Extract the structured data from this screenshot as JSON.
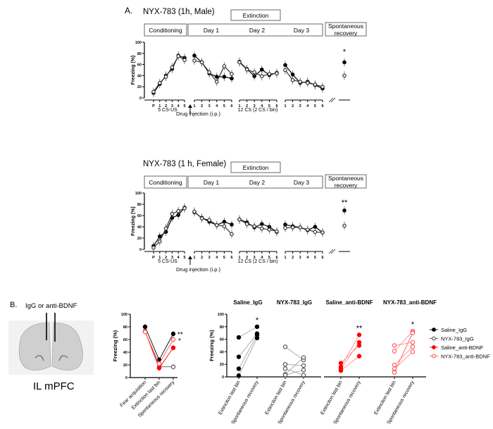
{
  "panel_a": {
    "label": "A.",
    "drug_injection": "Drug injection (i.p.)",
    "cs_us": "5 CS-US",
    "cs_bin": "12 CS (2 CS / bin)",
    "box_extinction": "Extinction",
    "box_conditioning": "Conditioning",
    "box_day1": "Day 1",
    "box_day2": "Day 2",
    "box_day3": "Day 3",
    "box_sr_1": "Spontaneous",
    "box_sr_2": "recovery"
  },
  "panel_b": {
    "label": "B.",
    "injection_label": "IgG  or anti-BDNF",
    "image_caption": "IL mPFC",
    "legend": [
      "Saline_IgG",
      "NYX-783_IgG",
      "Saline_anti-BDNF",
      "NYX-783_anti-BDNF"
    ]
  },
  "colors": {
    "black": "#000000",
    "gray": "#555555",
    "red": "#ff0000",
    "light_red": "#ff5a5a"
  },
  "chart_data": [
    {
      "type": "line",
      "title": "NYX-783 (1h, Male)",
      "ylabel": "Freezing (%)",
      "ylim": [
        0,
        100
      ],
      "yticks": [
        "0",
        "20",
        "40",
        "60",
        "80",
        "100"
      ],
      "segments": [
        {
          "ticks": [
            "P",
            "1",
            "2",
            "3",
            "4",
            "5"
          ]
        },
        {
          "ticks": [
            "1",
            "2",
            "3",
            "4",
            "5",
            "6"
          ]
        },
        {
          "ticks": [
            "1",
            "2",
            "3",
            "4",
            "5",
            "6"
          ]
        },
        {
          "ticks": [
            "1",
            "2",
            "3",
            "4",
            "5",
            "6"
          ]
        }
      ],
      "series": [
        {
          "marker": "filled",
          "segments": [
            [
              9,
              25,
              40,
              52,
              76,
              72
            ],
            [
              76,
              64,
              44,
              38,
              38,
              35
            ],
            [
              65,
              52,
              39,
              51,
              41,
              45
            ],
            [
              59,
              42,
              27,
              29,
              23,
              17
            ]
          ],
          "spontaneous_recovery": 64
        },
        {
          "marker": "open",
          "segments": [
            [
              11,
              27,
              38,
              55,
              75,
              68
            ],
            [
              67,
              64,
              46,
              29,
              57,
              43
            ],
            [
              64,
              51,
              46,
              39,
              43,
              44
            ],
            [
              50,
              32,
              29,
              27,
              24,
              20
            ]
          ],
          "spontaneous_recovery": 40
        }
      ],
      "significance": "*"
    },
    {
      "type": "line",
      "title": "NYX-783 (1 h, Female)",
      "ylabel": "Freezing (%)",
      "ylim": [
        0,
        100
      ],
      "yticks": [
        "0",
        "20",
        "40",
        "60",
        "80",
        "100"
      ],
      "segments": [
        {
          "ticks": [
            "P",
            "1",
            "2",
            "3",
            "4",
            "5"
          ]
        },
        {
          "ticks": [
            "1",
            "2",
            "3",
            "4",
            "5",
            "6"
          ]
        },
        {
          "ticks": [
            "1",
            "2",
            "3",
            "4",
            "5",
            "6"
          ]
        },
        {
          "ticks": [
            "1",
            "2",
            "3",
            "4",
            "5",
            "6"
          ]
        }
      ],
      "series": [
        {
          "marker": "filled",
          "segments": [
            [
              6,
              23,
              31,
              56,
              61,
              74
            ],
            [
              66,
              56,
              49,
              43,
              49,
              44
            ],
            [
              53,
              48,
              39,
              45,
              40,
              31
            ],
            [
              44,
              41,
              39,
              34,
              40,
              30
            ]
          ],
          "spontaneous_recovery": 69
        },
        {
          "marker": "open",
          "segments": [
            [
              3,
              14,
              37,
              63,
              68,
              73
            ],
            [
              67,
              55,
              52,
              43,
              41,
              27
            ],
            [
              53,
              45,
              41,
              37,
              35,
              32
            ],
            [
              38,
              39,
              39,
              35,
              31,
              30
            ]
          ],
          "spontaneous_recovery": 42
        }
      ],
      "significance": "**"
    },
    {
      "type": "line",
      "ylabel": "Freezing (%)",
      "ylim": [
        0,
        100
      ],
      "yticks": [
        "0",
        "20",
        "40",
        "60",
        "80",
        "100"
      ],
      "categories": [
        "Fear acquisition",
        "Extinction last bin",
        "Spontaneous recovery"
      ],
      "series": [
        {
          "name": "Saline_IgG",
          "color": "#000000",
          "marker": "filled",
          "values": [
            80,
            28,
            69
          ]
        },
        {
          "name": "NYX-783_IgG",
          "color": "#555555",
          "marker": "open",
          "values": [
            73,
            17,
            17
          ]
        },
        {
          "name": "Saline_anti-BDNF",
          "color": "#ff0000",
          "marker": "filled",
          "values": [
            73,
            15,
            47
          ]
        },
        {
          "name": "NYX-783_anti-BDNF",
          "color": "#ff5a5a",
          "marker": "open",
          "values": [
            72,
            22,
            60
          ]
        }
      ],
      "significance": [
        "**",
        "*"
      ]
    },
    {
      "type": "scatter",
      "ylabel": "Freezing (%)",
      "ylim": [
        0,
        100
      ],
      "yticks": [
        "0",
        "20",
        "40",
        "60",
        "80",
        "100"
      ],
      "categories": [
        "Extinciton last bin",
        "Spontaneous recovery"
      ],
      "groups": [
        {
          "title": "Saline_IgG",
          "color": "#000000",
          "marker": "filled",
          "pairs": [
            [
              63,
              80
            ],
            [
              32,
              69
            ],
            [
              13,
              67
            ],
            [
              2,
              62
            ]
          ],
          "significance": "*"
        },
        {
          "title": "NYX-783_IgG",
          "color": "#555555",
          "marker": "open",
          "pairs": [
            [
              48,
              27
            ],
            [
              20,
              18
            ],
            [
              13,
              3
            ],
            [
              4,
              31
            ],
            [
              3,
              11
            ]
          ],
          "significance": ""
        },
        {
          "title": "Saline_anti-BDNF",
          "color": "#ff0000",
          "marker": "filled",
          "pairs": [
            [
              22,
              50
            ],
            [
              16,
              67
            ],
            [
              13,
              55
            ],
            [
              10,
              33
            ]
          ],
          "significance": "**"
        },
        {
          "title": "NYX-783_anti-BDNF",
          "color": "#ff5a5a",
          "marker": "open",
          "pairs": [
            [
              50,
              55
            ],
            [
              41,
              73
            ],
            [
              19,
              48
            ],
            [
              13,
              40
            ],
            [
              8,
              71
            ],
            [
              7,
              70
            ]
          ],
          "significance": "*"
        }
      ],
      "legend_position": "right"
    }
  ]
}
